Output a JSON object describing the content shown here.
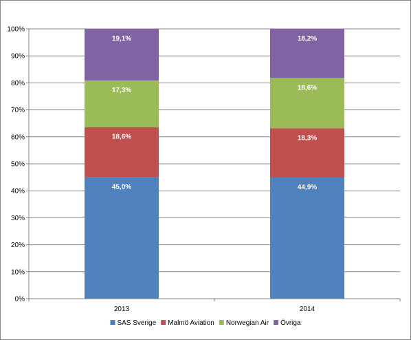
{
  "chart_data": {
    "type": "bar",
    "stacked": true,
    "categories": [
      "2013",
      "2014"
    ],
    "series": [
      {
        "name": "SAS Sverige",
        "values": [
          45.0,
          44.9
        ],
        "labels": [
          "45,0%",
          "44,9%"
        ],
        "color": "#4F81BD"
      },
      {
        "name": "Malmö Aviation",
        "values": [
          18.6,
          18.3
        ],
        "labels": [
          "18,6%",
          "18,3%"
        ],
        "color": "#C0504D"
      },
      {
        "name": "Norwegian Air",
        "values": [
          17.3,
          18.6
        ],
        "labels": [
          "17,3%",
          "18,6%"
        ],
        "color": "#9BBB59"
      },
      {
        "name": "Övriga",
        "values": [
          19.1,
          18.2
        ],
        "labels": [
          "19,1%",
          "18,2%"
        ],
        "color": "#8064A2"
      }
    ],
    "yticks": [
      "0%",
      "10%",
      "20%",
      "30%",
      "40%",
      "50%",
      "60%",
      "70%",
      "80%",
      "90%",
      "100%"
    ],
    "ylim": [
      0,
      100
    ],
    "grid": true,
    "legend_position": "bottom"
  }
}
